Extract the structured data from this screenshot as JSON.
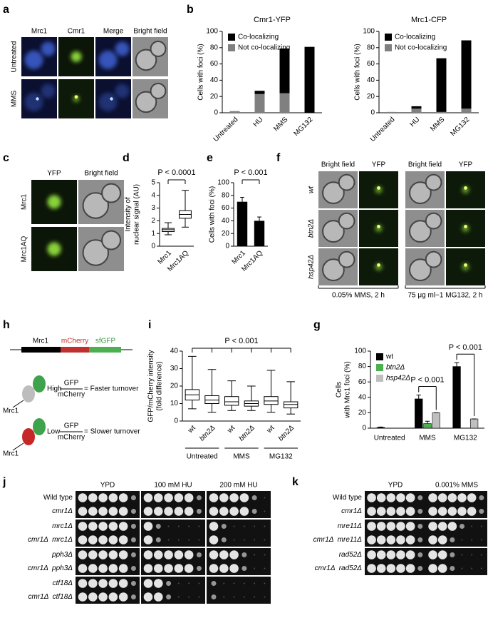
{
  "panel_labels": [
    "a",
    "b",
    "c",
    "d",
    "e",
    "f",
    "h",
    "i",
    "g",
    "j",
    "k"
  ],
  "chart_data": [
    {
      "type": "stacked_bar",
      "title": "Cmr1-YFP",
      "ylabel": "Cells with foci (%)",
      "categories": [
        "Untreated",
        "HU",
        "MMS",
        "MG132"
      ],
      "series": [
        {
          "name": "Co-localizing",
          "color": "#000000",
          "values": [
            0,
            4,
            55,
            81
          ]
        },
        {
          "name": "Not co-localizing",
          "color": "#808080",
          "values": [
            2,
            23,
            24,
            0
          ]
        }
      ],
      "ylim": [
        0,
        100
      ],
      "yticks": [
        0,
        20,
        40,
        60,
        80,
        100
      ]
    },
    {
      "type": "stacked_bar",
      "title": "Mrc1-CFP",
      "ylabel": "Cells with foci (%)",
      "categories": [
        "Untreated",
        "HU",
        "MMS",
        "MG132"
      ],
      "series": [
        {
          "name": "Co-localizing",
          "color": "#000000",
          "values": [
            0,
            3,
            66,
            84
          ]
        },
        {
          "name": "Not co-localizing",
          "color": "#808080",
          "values": [
            1,
            5,
            1,
            5
          ]
        }
      ],
      "ylim": [
        0,
        100
      ],
      "yticks": [
        0,
        20,
        40,
        60,
        80,
        100
      ]
    },
    {
      "type": "box",
      "ylabel": [
        "Intensity of",
        "nuclear signal (AU)"
      ],
      "categories": [
        "Mrc1",
        "Mrc1AQ"
      ],
      "boxes": [
        {
          "min": 0.9,
          "q1": 1.15,
          "median": 1.3,
          "q3": 1.4,
          "max": 1.85
        },
        {
          "min": 1.5,
          "q1": 2.2,
          "median": 2.5,
          "q3": 2.8,
          "max": 4.4
        }
      ],
      "ylim": [
        0,
        5
      ],
      "yticks": [
        0,
        1,
        2,
        3,
        4,
        5
      ],
      "annotation": "P < 0.0001"
    },
    {
      "type": "bar",
      "ylabel": "Cells with foci (%)",
      "categories": [
        "Mrc1",
        "Mrc1AQ"
      ],
      "values": [
        70,
        40
      ],
      "errors": [
        7,
        6
      ],
      "color": "#000000",
      "ylim": [
        0,
        100
      ],
      "yticks": [
        0,
        20,
        40,
        60,
        80,
        100
      ],
      "annotation": "P < 0.001"
    },
    {
      "type": "box",
      "ylabel": [
        "GFP/mCherry intensity",
        "(fold difference)"
      ],
      "categories": [
        "wt",
        "btn2Δ",
        "wt",
        "btn2Δ",
        "wt",
        "btn2Δ"
      ],
      "groups": [
        "Untreated",
        "MMS",
        "MG132"
      ],
      "boxes": [
        {
          "min": 7,
          "q1": 12,
          "median": 15,
          "q3": 18,
          "max": 37
        },
        {
          "min": 5,
          "q1": 10,
          "median": 12,
          "q3": 14.5,
          "max": 29.5
        },
        {
          "min": 6,
          "q1": 9,
          "median": 11,
          "q3": 14,
          "max": 23
        },
        {
          "min": 6,
          "q1": 8.5,
          "median": 10,
          "q3": 11.5,
          "max": 20
        },
        {
          "min": 5,
          "q1": 9.5,
          "median": 11.5,
          "q3": 14,
          "max": 29
        },
        {
          "min": 4,
          "q1": 7.5,
          "median": 9.5,
          "q3": 11,
          "max": 22.5
        }
      ],
      "ylim": [
        0,
        40
      ],
      "yticks": [
        0,
        10,
        20,
        30,
        40
      ],
      "annotation": "P < 0.001"
    },
    {
      "type": "grouped_bar",
      "ylabel": [
        "Cells",
        "with Mrc1 foci (%)"
      ],
      "categories": [
        "Untreated",
        "MMS",
        "MG132"
      ],
      "series": [
        {
          "name": "wt",
          "color": "#000000",
          "values": [
            1,
            38,
            80
          ],
          "errors": [
            0.5,
            5,
            5
          ]
        },
        {
          "name": "btn2Δ",
          "color": "#4caf50",
          "values": [
            0,
            6,
            0
          ],
          "errors": [
            0,
            3,
            0
          ]
        },
        {
          "name": "hsp42Δ",
          "color": "#bfbfbf",
          "values": [
            0,
            20,
            12
          ],
          "errors": [
            0,
            0,
            0
          ]
        }
      ],
      "ylim": [
        0,
        100
      ],
      "yticks": [
        0,
        20,
        40,
        60,
        80,
        100
      ],
      "annotations": [
        "P < 0.001",
        "P < 0.001"
      ]
    }
  ],
  "panel_a": {
    "columns": [
      "Mrc1",
      "Cmr1",
      "Merge",
      "Bright field"
    ],
    "rows": [
      "Untreated",
      "MMS"
    ]
  },
  "panel_c": {
    "columns": [
      "YFP",
      "Bright field"
    ],
    "rows": [
      "Mrc1",
      "Mrc1AQ"
    ]
  },
  "panel_f": {
    "columns": [
      "Bright field",
      "YFP",
      "Bright field",
      "YFP"
    ],
    "rows": [
      "wt",
      "btn2Δ",
      "hsp42Δ"
    ],
    "conditions": [
      "0.05% MMS, 2 h",
      "75 μg ml−1 MG132, 2 h"
    ]
  },
  "panel_h": {
    "construct": [
      "Mrc1",
      "mCherry",
      "sfGFP"
    ],
    "protein": "Mrc1",
    "high": "High",
    "low": "Low",
    "numerator": "GFP",
    "denominator": "mCherry",
    "faster": "= Faster turnover",
    "slower": "= Slower turnover"
  },
  "panel_j": {
    "media": [
      "YPD",
      "100 mM HU",
      "200 mM HU"
    ],
    "strains": [
      "Wild type",
      "cmr1Δ",
      "mrc1Δ",
      "cmr1Δ  mrc1Δ",
      "pph3Δ",
      "cmr1Δ  pph3Δ",
      "ctf18Δ",
      "cmr1Δ  ctf18Δ"
    ]
  },
  "panel_k": {
    "media": [
      "YPD",
      "0.001% MMS"
    ],
    "strains": [
      "Wild type",
      "cmr1Δ",
      "mre11Δ",
      "cmr1Δ  mre11Δ",
      "rad52Δ",
      "cmr1Δ  rad52Δ"
    ]
  }
}
